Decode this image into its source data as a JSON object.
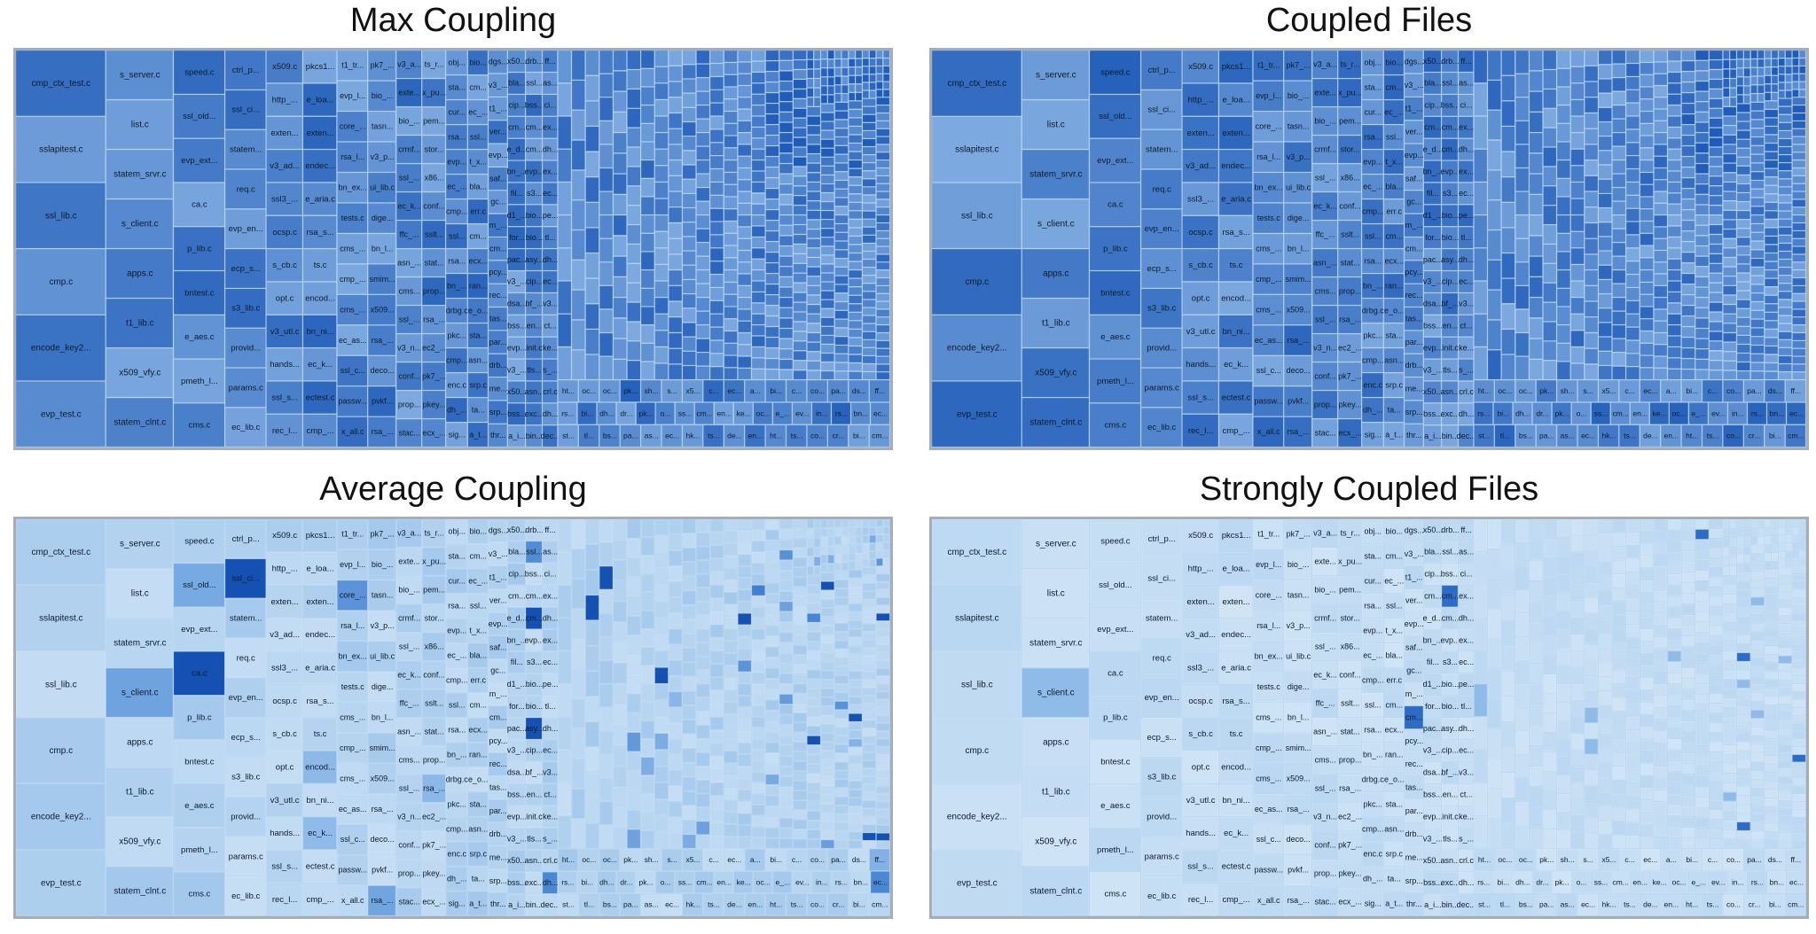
{
  "chart_data": [
    {
      "type": "treemap",
      "title": "Max Coupling",
      "scheme": "dark",
      "columns": [
        {
          "weight": 14,
          "labels": [
            "cmp_ctx_test.c",
            "sslapitest.c",
            "ssl_lib.c",
            "cmp.c",
            "encode_key2...",
            "evp_test.c"
          ]
        },
        {
          "weight": 10.5,
          "labels": [
            "s_server.c",
            "list.c",
            "statem_srvr.c",
            "s_client.c",
            "apps.c",
            "t1_lib.c",
            "x509_vfy.c",
            "statem_clnt.c"
          ]
        },
        {
          "weight": 8,
          "labels": [
            "speed.c",
            "ssl_old...",
            "evp_ext...",
            "ca.c",
            "p_lib.c",
            "bntest.c",
            "e_aes.c",
            "pmeth_l...",
            "cms.c"
          ]
        },
        {
          "weight": 6.4,
          "labels": [
            "ctrl_p...",
            "ssl_ci...",
            "statem...",
            "req.c",
            "evp_en...",
            "ecp_s...",
            "s3_lib.c",
            "provid...",
            "params.c",
            "ec_lib.c"
          ]
        },
        {
          "weight": 5.7,
          "labels": [
            "x509.c",
            "http_...",
            "exten...",
            "v3_ad...",
            "ssl3_...",
            "ocsp.c",
            "s_cb.c",
            "opt.c",
            "v3_utl.c",
            "hands...",
            "ssl_s...",
            "rec_l..."
          ]
        },
        {
          "weight": 5.3,
          "labels": [
            "pkcs1...",
            "e_loa...",
            "exten...",
            "endec...",
            "e_aria.c",
            "rsa_s...",
            "ts.c",
            "encod...",
            "bn_ni...",
            "ec_k...",
            "ectest.c",
            "cmp_..."
          ]
        },
        {
          "weight": 4.8,
          "labels": [
            "t1_tr...",
            "evp_l...",
            "core_...",
            "rsa_l...",
            "bn_ex...",
            "tests.c",
            "cms_...",
            "cmp_...",
            "cms_...",
            "ec_as...",
            "ssl_c...",
            "passw...",
            "x_all.c"
          ]
        },
        {
          "weight": 4.4,
          "labels": [
            "pk7_...",
            "bio_...",
            "tasn...",
            "v3_p...",
            "ui_lib.c",
            "dige...",
            "bn_l...",
            "smim...",
            "x509...",
            "rsa_...",
            "deco...",
            "pvkf...",
            "rsa_..."
          ]
        },
        {
          "weight": 4.0,
          "labels": [
            "v3_a...",
            "exte...",
            "bio_...",
            "crmf...",
            "ssl_...",
            "ec_k...",
            "ffc_...",
            "asn_...",
            "cms...",
            "ssl_...",
            "v3_n...",
            "conf...",
            "prop...",
            "stac..."
          ]
        },
        {
          "weight": 3.7,
          "labels": [
            "ts_r...",
            "x_pu...",
            "pem...",
            "stor...",
            "x86...",
            "conf...",
            "sslt...",
            "stat...",
            "prop...",
            "rsa_...",
            "ec2_...",
            "pk7_...",
            "pkey...",
            "ecx_..."
          ]
        },
        {
          "weight": 3.4,
          "labels": [
            "obj...",
            "sta...",
            "cur...",
            "rsa...",
            "evp...",
            "ec_...",
            "cmp...",
            "ssl...",
            "rsa...",
            "bn_...",
            "drbg.c",
            "pkc...",
            "cmp...",
            "enc.c",
            "dh_...",
            "sig..."
          ]
        },
        {
          "weight": 3.2,
          "labels": [
            "bio...",
            "cm...",
            "ec_...",
            "ssl...",
            "t_x...",
            "bla...",
            "err.c",
            "cm...",
            "ecx...",
            "ran...",
            "e_o...",
            "sta...",
            "asn...",
            "srp.c",
            "ta...",
            "a_t..."
          ]
        },
        {
          "weight": 3.0,
          "labels": [
            "dgs...",
            "v3_...",
            "t1_...",
            "ver...",
            "evp...",
            "saf...",
            "gc...",
            "m_...",
            "cm...",
            "pcy...",
            "rec...",
            "tas...",
            "par...",
            "drb...",
            "me...",
            "srp...",
            "thr..."
          ]
        },
        {
          "weight": 2.8,
          "labels": [
            "x50...",
            "bla...",
            "cip...",
            "cm...",
            "e_d...",
            "bn_...",
            "fil...",
            "d1_...",
            "for...",
            "pac...",
            "v3_...",
            "dsa...",
            "bss...",
            "evp...",
            "v3_...",
            "x50...",
            "bss...",
            "a_i..."
          ]
        },
        {
          "weight": 2.6,
          "labels": [
            "drb...",
            "ssl...",
            "bss...",
            "cm...",
            "cm...",
            "evp...",
            "s3...",
            "bio...",
            "bio...",
            "asy...",
            "cip...",
            "bf_...",
            "en...",
            "init.c",
            "tls...",
            "asn...",
            "exc...",
            "bin..."
          ]
        },
        {
          "weight": 2.4,
          "labels": [
            "ff...",
            "as...",
            "ci...",
            "ex...",
            "dh...",
            "ex...",
            "ec...",
            "pe...",
            "tl...",
            "dh...",
            "ec...",
            "v3...",
            "ct...",
            "ke...",
            "s_...",
            "crl.c",
            "dh...",
            "dec..."
          ]
        }
      ],
      "bottom_rows": [
        [
          "ht...",
          "oc...",
          "oc...",
          "pk...",
          "sh...",
          "s...",
          "x5...",
          "c...",
          "ec...",
          "a...",
          "bi...",
          "c...",
          "co...",
          "pa...",
          "ds...",
          "ff..."
        ],
        [
          "rs...",
          "bi...",
          "dh...",
          "dr...",
          "pk...",
          "o...",
          "ss...",
          "cm...",
          "en...",
          "ke...",
          "oc...",
          "e_...",
          "ev...",
          "in...",
          "rs...",
          "bn...",
          "ec..."
        ],
        [
          "st...",
          "tl...",
          "bs...",
          "pa...",
          "as...",
          "ec...",
          "hk...",
          "ts...",
          "de...",
          "en...",
          "ht...",
          "ts...",
          "co...",
          "cr...",
          "bi...",
          "cm..."
        ]
      ]
    },
    {
      "type": "treemap",
      "title": "Coupled Files",
      "scheme": "dark",
      "same_layout_as": 0
    },
    {
      "type": "treemap",
      "title": "Average Coupling",
      "scheme": "light",
      "same_layout_as": 0
    },
    {
      "type": "treemap",
      "title": "Strongly Coupled Files",
      "scheme": "lightest",
      "same_layout_as": 0
    }
  ],
  "colors": {
    "dark_base": "#5b8fd4",
    "light_base": "#a9cdee",
    "accent": "#0d47a1",
    "border": "#a6adb8"
  }
}
